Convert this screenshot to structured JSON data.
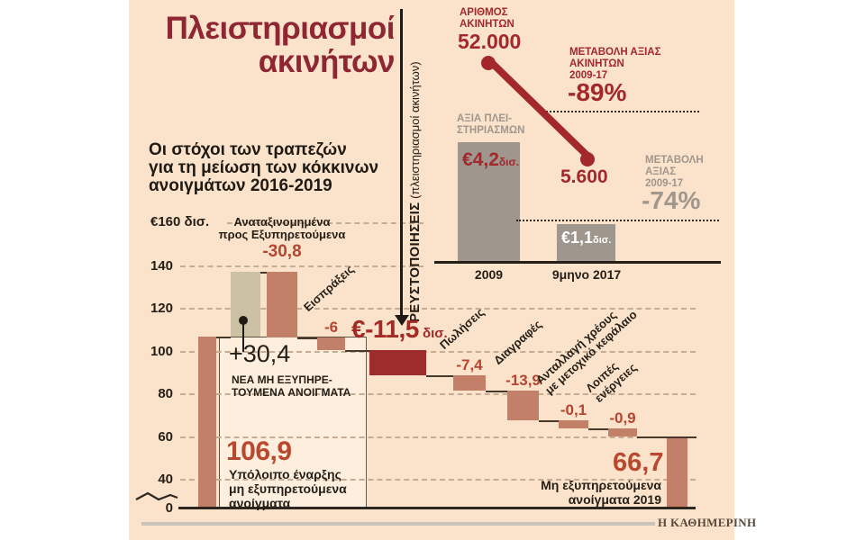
{
  "header": {
    "title": "Πλειστηριασμοί\nακινήτων",
    "subtitle": "Οι στόχοι των τραπεζών\nγια τη μείωση των κόκκινων\nανοιγμάτων 2016-2019"
  },
  "vertical_axis": {
    "label": "ΡΕΥΣΤΟΠΟΙΗΣΕΙΣ",
    "note": " (πλειστηριασμοί ακινήτων)"
  },
  "inset": {
    "number_label": "ΑΡΙΘΜΟΣ\nΑΚΙΝΗΤΩΝ",
    "number_2009": "52.000",
    "number_2017": "5.600",
    "value_change_label": "ΜΕΤΑΒΟΛΗ ΑΞΙΑΣ\nΑΚΙΝΗΤΩΝ\n2009-17",
    "value_change_value": "-89%",
    "auction_value_label": "ΑΞΙΑ ΠΛΕΙ-\nΣΤΗΡΙΑΣΜΩΝ",
    "bar_2009_value": "€4,2",
    "bar_2009_unit": "δισ.",
    "bar_2017_value": "€1,1",
    "bar_2017_unit": "δισ.",
    "value_change2_label": "ΜΕΤΑΒΟΛΗ\nΑΞΙΑΣ\n2009-17",
    "value_change2_value": "-74%",
    "x_2009": "2009",
    "x_2017": "9μηνο 2017"
  },
  "main_chart": {
    "y_top_label": "€160 δισ.",
    "annotations": {
      "reclassified_label": "Αναταξινομημένα\nπρος Εξυπηρετούμενα",
      "reclassified_value": "-30,8",
      "new_npe_value": "+30,4",
      "new_npe_label": "ΝΕΑ ΜΗ ΕΞΥΠΗΡΕ-\nΤΟΥΜΕΝΑ ΑΝΟΙΓΜΑΤΑ",
      "start_value": "106,9",
      "start_label": "Υπόλοιπο έναρξης\nμη εξυπηρετούμενα\nανοίγματα",
      "liquidations_value": "€-11,5",
      "liquidations_unit": " δισ.",
      "end_value": "66,7",
      "end_label": "Μη εξυπηρετούμενα\nανοίγματα 2019"
    }
  },
  "credit": "Η ΚΑΘΗΜΕΡΙΝΗ",
  "chart_data": [
    {
      "type": "bar",
      "subtype": "waterfall",
      "title": "Οι στόχοι των τραπεζών για τη μείωση των κόκκινων ανοιγμάτων 2016-2019",
      "unit": "€ δισ.",
      "ylabel": "€160 δισ.",
      "ylim": [
        0,
        160
      ],
      "yticks": [
        0,
        40,
        60,
        80,
        100,
        120,
        140,
        160
      ],
      "axis_break_between": [
        0,
        40
      ],
      "grid": "dashed-horizontal",
      "categories": [
        "Υπόλοιπο έναρξης\nμη εξυπηρετούμενα\nανοίγματα",
        "ΝΕΑ ΜΗ ΕΞΥΠΗΡΕΤΟΥΜΕΝΑ ΑΝΟΙΓΜΑΤΑ",
        "Αναταξινομημένα\nπρος Εξυπηρετούμενα",
        "Εισπράξεις",
        "Ρευστοποιήσεις (πλειστηριασμοί ακινήτων)",
        "Πωλήσεις",
        "Διαγραφές",
        "Ανταλλαγή χρέους\nμε μετοχικό κεφάλαιο",
        "Λοιπές\nενέργειες",
        "Μη εξυπηρετούμενα\nανοίγματα 2019"
      ],
      "values": [
        106.9,
        30.4,
        -30.8,
        -6,
        -11.5,
        -7.4,
        -13.9,
        -0.1,
        -0.9,
        66.7
      ],
      "value_labels": [
        "106,9",
        "+30,4",
        "-30,8",
        "-6",
        "€-11,5 δισ.",
        "-7,4",
        "-13,9",
        "-0,1",
        "-0,9",
        "66,7"
      ],
      "bar_kinds": [
        "total",
        "increase",
        "decrease",
        "decrease",
        "decrease-highlight",
        "decrease",
        "decrease",
        "decrease",
        "decrease",
        "total"
      ]
    },
    {
      "type": "bar",
      "title": "ΑΞΙΑ ΠΛΕΙΣΤΗΡΙΑΣΜΩΝ / ΑΡΙΘΜΟΣ ΑΚΙΝΗΤΩΝ",
      "categories": [
        "2009",
        "9μηνο 2017"
      ],
      "series": [
        {
          "name": "ΑΞΙΑ ΠΛΕΙΣΤΗΡΙΑΣΜΩΝ (€ δισ.)",
          "type": "bar",
          "values": [
            4.2,
            1.1
          ],
          "value_labels": [
            "€4,2 δισ.",
            "€1,1 δισ."
          ]
        },
        {
          "name": "ΑΡΙΘΜΟΣ ΑΚΙΝΗΤΩΝ",
          "type": "line",
          "values": [
            52000,
            5600
          ],
          "value_labels": [
            "52.000",
            "5.600"
          ]
        }
      ],
      "annotations": [
        {
          "label": "ΜΕΤΑΒΟΛΗ ΑΞΙΑΣ ΑΚΙΝΗΤΩΝ 2009-17",
          "value": "-89%"
        },
        {
          "label": "ΜΕΤΑΒΟΛΗ ΑΞΙΑΣ 2009-17",
          "value": "-74%"
        }
      ],
      "legend_position": "none",
      "grid": false
    }
  ]
}
